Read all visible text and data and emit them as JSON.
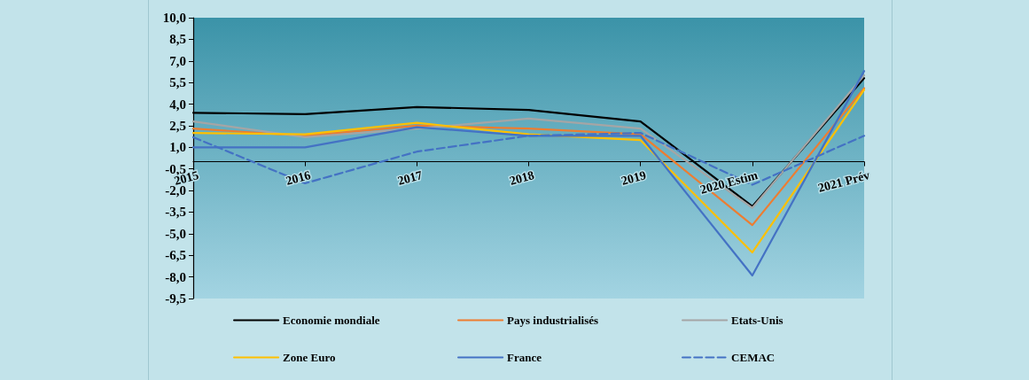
{
  "chart_data": {
    "type": "line",
    "categories": [
      "2015",
      "2016",
      "2017",
      "2018",
      "2019",
      "2020 Estim",
      "2021 Prév"
    ],
    "series": [
      {
        "name": "Economie mondiale",
        "color": "#000000",
        "values": [
          3.4,
          3.3,
          3.8,
          3.6,
          2.8,
          -3.1,
          5.8
        ]
      },
      {
        "name": "Pays industrialisés",
        "color": "#ed7d31",
        "values": [
          2.3,
          1.8,
          2.5,
          2.3,
          1.9,
          -4.4,
          5.1
        ]
      },
      {
        "name": "Etats-Unis",
        "color": "#a5a5a5",
        "values": [
          2.8,
          1.7,
          2.3,
          3.0,
          2.3,
          -3.2,
          6.0
        ]
      },
      {
        "name": "Zone Euro",
        "color": "#ffc000",
        "values": [
          2.0,
          1.9,
          2.7,
          1.9,
          1.5,
          -6.3,
          5.0
        ]
      },
      {
        "name": "France",
        "color": "#4472c4",
        "values": [
          1.0,
          1.0,
          2.4,
          1.8,
          1.8,
          -7.9,
          6.3
        ]
      },
      {
        "name": "CEMAC",
        "color": "#4472c4",
        "line_style": "dashed",
        "values": [
          1.7,
          -1.5,
          0.7,
          1.8,
          2.0,
          -1.6,
          1.8
        ]
      }
    ],
    "ylim": [
      -9.5,
      10
    ],
    "yticks": [
      {
        "value": -9.5,
        "label": "-9,5"
      },
      {
        "value": -8,
        "label": "-8,0"
      },
      {
        "value": -6.5,
        "label": "-6,5"
      },
      {
        "value": -5,
        "label": "-5,0"
      },
      {
        "value": -3.5,
        "label": "-3,5"
      },
      {
        "value": -2,
        "label": "-2,0"
      },
      {
        "value": -0.5,
        "label": "-0,5"
      },
      {
        "value": 1,
        "label": "1,0"
      },
      {
        "value": 2.5,
        "label": "2,5"
      },
      {
        "value": 4,
        "label": "4,0"
      },
      {
        "value": 5.5,
        "label": "5,5"
      },
      {
        "value": 7,
        "label": "7,0"
      },
      {
        "value": 8.5,
        "label": "8,5"
      },
      {
        "value": 10,
        "label": "10,0"
      }
    ],
    "grid": false,
    "legend": "bottom",
    "marker": "none",
    "line_style": "solid"
  }
}
